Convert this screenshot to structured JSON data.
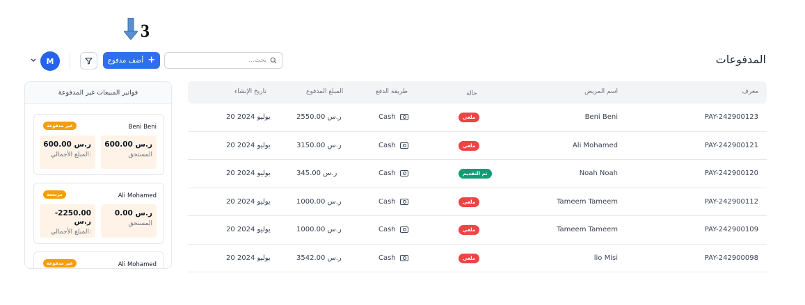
{
  "annotation": {
    "number": "3"
  },
  "header": {
    "title": "المدفوعات",
    "search_placeholder": "بحث...",
    "add_label": "أضف مدفوع",
    "add_icon": "+",
    "avatar_initial": "M"
  },
  "table": {
    "headers": {
      "id": "معرف",
      "patient": "اسم المريض",
      "status": "حالة",
      "method": "طريقة الدفع",
      "amount": "المبلغ المدفوع",
      "date": "تاريخ الإنشاء"
    },
    "rows": [
      {
        "id": "PAY-242900123",
        "patient": "Beni Beni",
        "status": "ملغي",
        "status_color": "#ef4444",
        "method": "Cash",
        "amount": "2550.00 ر.س",
        "date": "20 يوليو 2024"
      },
      {
        "id": "PAY-242900121",
        "patient": "Ali Mohamed",
        "status": "ملغي",
        "status_color": "#ef4444",
        "method": "Cash",
        "amount": "3150.00 ر.س",
        "date": "20 يوليو 2024"
      },
      {
        "id": "PAY-242900120",
        "patient": "Noah Noah",
        "status": "تم التقديم",
        "status_color": "#0f9d76",
        "method": "Cash",
        "amount": "345.00 ر.س",
        "date": "20 يوليو 2024"
      },
      {
        "id": "PAY-242900112",
        "patient": "Tameem Tameem",
        "status": "ملغي",
        "status_color": "#ef4444",
        "method": "Cash",
        "amount": "1000.00 ر.س",
        "date": "20 يوليو 2024"
      },
      {
        "id": "PAY-242900109",
        "patient": "Tameem Tameem",
        "status": "ملغي",
        "status_color": "#ef4444",
        "method": "Cash",
        "amount": "1000.00 ر.س",
        "date": "20 يوليو 2024"
      },
      {
        "id": "PAY-242900098",
        "patient": "lio Misi",
        "status": "ملغي",
        "status_color": "#ef4444",
        "method": "Cash",
        "amount": "3542.00 ر.س",
        "date": "20 يوليو 2024"
      }
    ]
  },
  "sidebar": {
    "title": "فواتير المبيعات غير المدفوعة",
    "cards": [
      {
        "name": "Beni Beni",
        "badge": "غير مدفوعة",
        "badge_color": "#f59e0b",
        "due_value": "600.00 ر.س",
        "due_label": "المستحق",
        "total_value": "600.00 ر.س",
        "total_label": "المبلغ الأجمالي:"
      },
      {
        "name": "Ali Mohamed",
        "badge": "مرتجعة",
        "badge_color": "#f59e0b",
        "due_value": "0.00 ر.س",
        "due_label": "المستحق",
        "total_value": "-2250.00 ر.س",
        "total_label": "المبلغ الأجمالي:"
      },
      {
        "name": "Ali Mohamed",
        "badge": "غير مدفوعة",
        "badge_color": "#f59e0b"
      }
    ]
  },
  "colors": {
    "primary": "#2f6fed",
    "cancelled": "#ef4444",
    "submitted": "#0f9d76",
    "warning": "#f59e0b"
  }
}
